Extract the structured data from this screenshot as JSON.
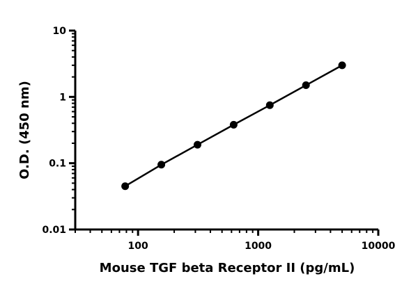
{
  "chart_data": {
    "type": "scatter",
    "xlabel": "Mouse TGF beta Receptor II (pg/mL)",
    "ylabel": "O.D. (450 nm)",
    "x_scale": "log",
    "y_scale": "log",
    "xlim": [
      30,
      10000
    ],
    "ylim": [
      0.01,
      10
    ],
    "x_ticks": [
      "100",
      "1000",
      "10000"
    ],
    "x_tick_values": [
      100,
      1000,
      10000
    ],
    "y_ticks": [
      "0.01",
      "0.1",
      "1",
      "10"
    ],
    "y_tick_values": [
      0.01,
      0.1,
      1,
      10
    ],
    "grid": false,
    "color": "#000000",
    "series": [
      {
        "x": [
          78.125,
          156.25,
          312.5,
          625,
          1250,
          2500,
          5000
        ],
        "y": [
          0.045,
          0.095,
          0.19,
          0.38,
          0.75,
          1.5,
          3.0
        ],
        "line": true,
        "marker": "circle"
      }
    ]
  }
}
